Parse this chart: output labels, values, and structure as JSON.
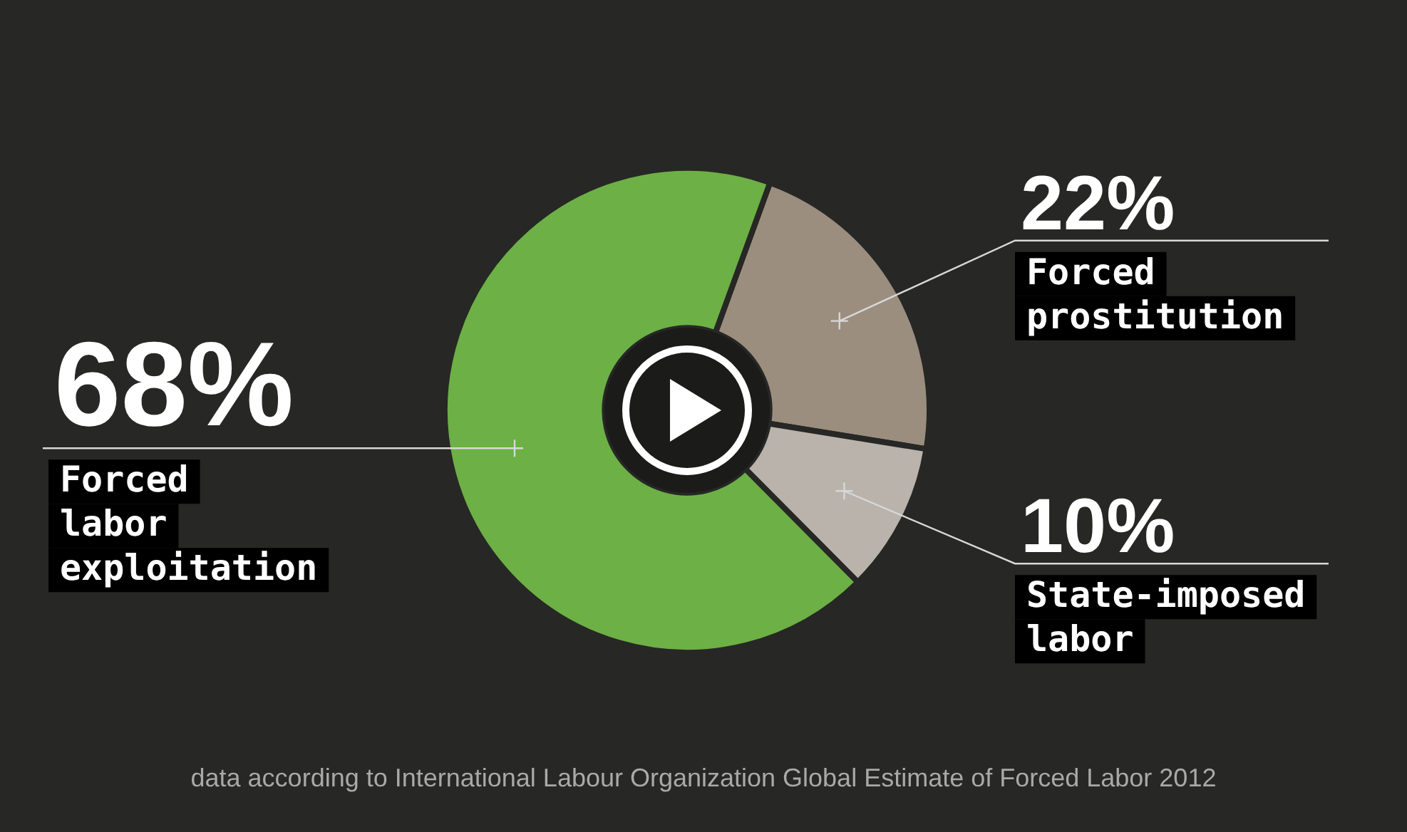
{
  "chart_data": {
    "type": "donut",
    "categories": [
      "Forced prostitution",
      "State-imposed labor",
      "Forced labor exploitation"
    ],
    "values": [
      22,
      10,
      68
    ],
    "colors": [
      "#9b8e7f",
      "#b9b3ab",
      "#6cb046"
    ],
    "value_labels": [
      "22%",
      "10%",
      "68%"
    ],
    "legend": false,
    "annotations": [
      "data according to International Labour Organization Global Estimate of Forced Labor 2012"
    ]
  }
}
